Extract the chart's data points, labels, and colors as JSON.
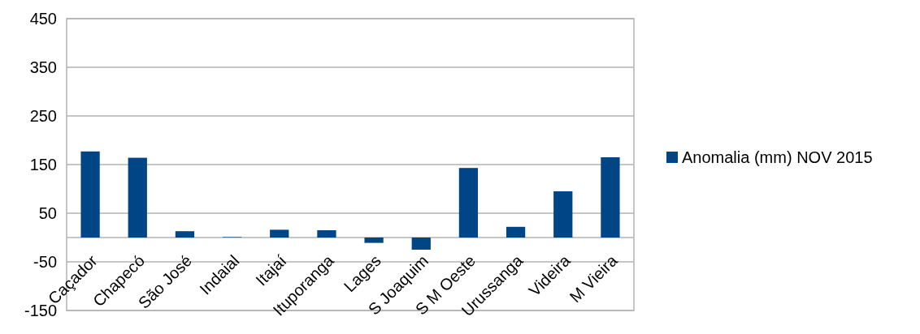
{
  "chart_data": {
    "type": "bar",
    "categories": [
      "Caçador",
      "Chapecó",
      "São José",
      "Indaial",
      "Itajaí",
      "Ituporanga",
      "Lages",
      "S Joaquim",
      "S M Oeste",
      "Urussanga",
      "Videira",
      "M Vieira"
    ],
    "series": [
      {
        "name": "Anomalia (mm) NOV 2015",
        "color": "#004586",
        "values": [
          177,
          164,
          13,
          1,
          16,
          15,
          -11,
          -25,
          143,
          22,
          95,
          165
        ]
      }
    ],
    "ylim": [
      -150,
      450
    ],
    "yticks": [
      -150,
      -50,
      50,
      150,
      250,
      350,
      450
    ],
    "grid": "y",
    "legend": "right"
  }
}
